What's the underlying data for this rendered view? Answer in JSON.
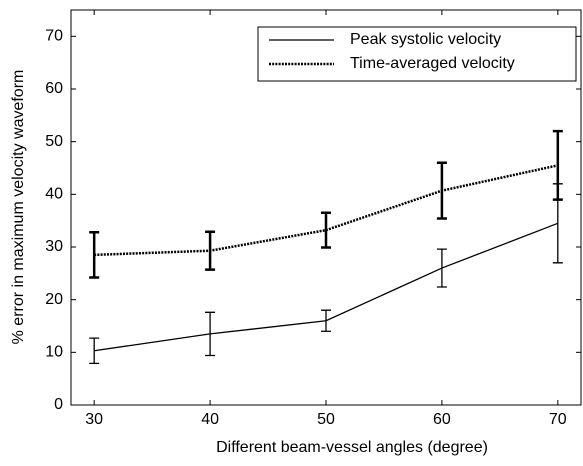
{
  "chart_data": {
    "type": "line",
    "x_label": "Different beam-vessel angles (degree)",
    "y_label": "% error in maximum velocity waveform",
    "x": [
      30,
      40,
      50,
      60,
      70
    ],
    "series": [
      {
        "name": "Peak systolic velocity",
        "color": "#000000",
        "line_style": "solid",
        "values": [
          10.3,
          13.5,
          16,
          26,
          34.5
        ],
        "errors": [
          2.4,
          4.1,
          2,
          3.6,
          7.5
        ]
      },
      {
        "name": "Time-averaged velocity",
        "color": "#000000",
        "line_style": "dotted",
        "values": [
          28.5,
          29.3,
          33.2,
          40.7,
          45.5
        ],
        "errors": [
          4.3,
          3.6,
          3.3,
          5.3,
          6.5
        ]
      }
    ],
    "xlim": [
      28,
      72
    ],
    "ylim": [
      0,
      75
    ],
    "xticks": [
      30,
      40,
      50,
      60,
      70
    ],
    "yticks": [
      0,
      10,
      20,
      30,
      40,
      50,
      60,
      70
    ],
    "grid": false,
    "legend_position": "upper right"
  }
}
